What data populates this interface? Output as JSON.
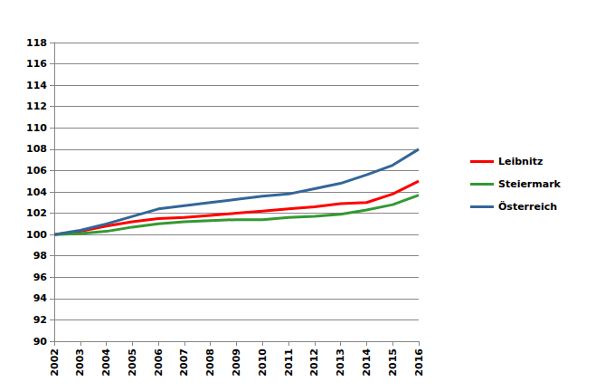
{
  "chart_data": {
    "type": "line",
    "categories": [
      "2002",
      "2003",
      "2004",
      "2005",
      "2006",
      "2007",
      "2008",
      "2009",
      "2010",
      "2011",
      "2012",
      "2013",
      "2014",
      "2015",
      "2016"
    ],
    "series": [
      {
        "name": "Leibnitz",
        "color": "#ff0000",
        "values": [
          100,
          100.3,
          100.8,
          101.2,
          101.5,
          101.6,
          101.8,
          102.0,
          102.2,
          102.4,
          102.6,
          102.9,
          103.0,
          103.8,
          105.0
        ]
      },
      {
        "name": "Steiermark",
        "color": "#339933",
        "values": [
          100,
          100.1,
          100.3,
          100.7,
          101.0,
          101.2,
          101.3,
          101.4,
          101.4,
          101.6,
          101.7,
          101.9,
          102.3,
          102.8,
          103.7
        ]
      },
      {
        "name": "Österreich",
        "color": "#336699",
        "values": [
          100,
          100.4,
          101.0,
          101.7,
          102.4,
          102.7,
          103.0,
          103.3,
          103.6,
          103.8,
          104.3,
          104.8,
          105.6,
          106.5,
          108.0
        ]
      }
    ],
    "ylim": [
      90,
      118
    ],
    "yticks": [
      90,
      92,
      94,
      96,
      98,
      100,
      102,
      104,
      106,
      108,
      110,
      112,
      114,
      116,
      118
    ],
    "grid": true,
    "legend": "right"
  }
}
